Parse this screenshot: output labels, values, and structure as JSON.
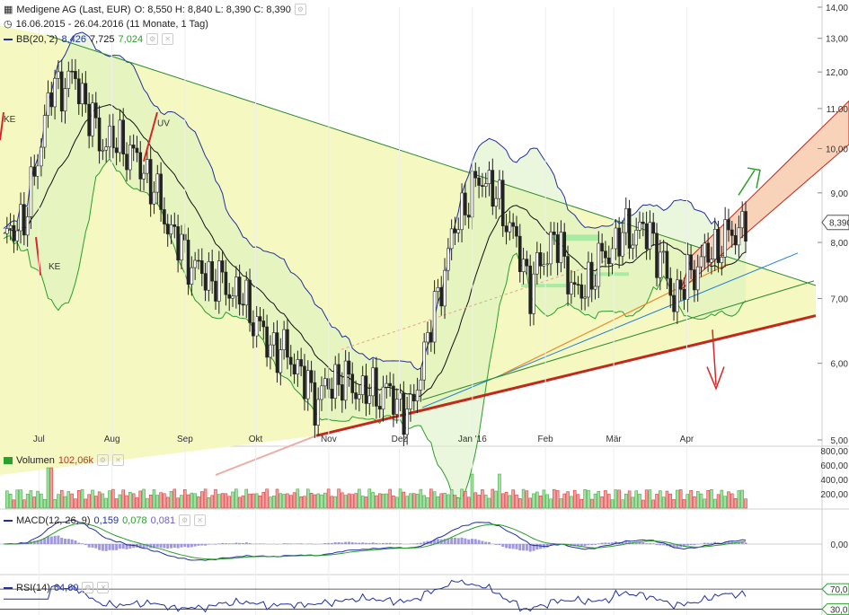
{
  "header": {
    "instrument": "Medigene AG (Last, EUR)",
    "ohlc": "O: 8,550  H: 8,840  L: 8,390  C: 8,390",
    "range": "16.06.2015 - 26.04.2016 (11 Monate, 1 Tag)",
    "bb_label": "BB(20, 2)",
    "bb_values": [
      "8,426",
      "7,725",
      "7,024"
    ]
  },
  "panels": {
    "volume": {
      "label": "Volumen",
      "value": "102,06k"
    },
    "macd": {
      "label": "MACD(12, 26, 9)",
      "values": [
        "0,159",
        "0,078",
        "0,081"
      ]
    },
    "rsi": {
      "label": "RSI(14)",
      "value": "64,60"
    }
  },
  "price_tag": "8,390",
  "annotations": {
    "ke_left": "KE",
    "ke_bottom": "KE",
    "uv": "UV"
  },
  "colors": {
    "up": "#2ca02c",
    "down": "#d62728",
    "bb_upper": "#1f2f9f",
    "bb_mid": "#111111",
    "bb_lower": "#2a9d2a",
    "triangle_fill": "#f5f8c0",
    "support": "#c0291c",
    "channel_fill": "#f9d3b9",
    "macd": "#1f2f9f",
    "signal": "#2a9d2a",
    "hist": "#8a7fd8"
  },
  "chart_data": {
    "type": "candlestick",
    "title": "Medigene AG (Last, EUR)",
    "x_tick_labels": [
      "Jul",
      "Aug",
      "Sep",
      "Okt",
      "Nov",
      "Dez",
      "Jan '16",
      "Feb",
      "Mär",
      "Apr"
    ],
    "y_tick_labels": [
      "5,00",
      "6,00",
      "7,00",
      "8,00",
      "9,00",
      "10,00",
      "11,00",
      "12,00",
      "13,00",
      "14,00"
    ],
    "y_range": [
      5,
      14
    ],
    "y_scale": "log",
    "volume_ticks": [
      "200,00",
      "400,00",
      "600,00",
      "800,00"
    ],
    "macd_ticks": [
      "0,00"
    ],
    "rsi_ticks": [
      "70,0",
      "30,0"
    ],
    "close_series": [
      {
        "date": "2015-06-16",
        "close": 8.0
      },
      {
        "date": "2015-06-26",
        "close": 8.6
      },
      {
        "date": "2015-07-06",
        "close": 11.5
      },
      {
        "date": "2015-07-16",
        "close": 11.8
      },
      {
        "date": "2015-07-26",
        "close": 10.2
      },
      {
        "date": "2015-08-05",
        "close": 10.1
      },
      {
        "date": "2015-08-15",
        "close": 9.4
      },
      {
        "date": "2015-08-25",
        "close": 8.2
      },
      {
        "date": "2015-09-05",
        "close": 7.5
      },
      {
        "date": "2015-09-15",
        "close": 7.3
      },
      {
        "date": "2015-09-25",
        "close": 7.0
      },
      {
        "date": "2015-10-05",
        "close": 6.3
      },
      {
        "date": "2015-10-15",
        "close": 6.1
      },
      {
        "date": "2015-10-25",
        "close": 5.5
      },
      {
        "date": "2015-11-05",
        "close": 5.8
      },
      {
        "date": "2015-11-15",
        "close": 5.6
      },
      {
        "date": "2015-11-25",
        "close": 5.6
      },
      {
        "date": "2015-12-05",
        "close": 5.3
      },
      {
        "date": "2015-12-15",
        "close": 6.8
      },
      {
        "date": "2015-12-25",
        "close": 8.5
      },
      {
        "date": "2016-01-05",
        "close": 9.4
      },
      {
        "date": "2016-01-15",
        "close": 8.5
      },
      {
        "date": "2016-01-25",
        "close": 7.2
      },
      {
        "date": "2016-02-05",
        "close": 8.1
      },
      {
        "date": "2016-02-15",
        "close": 7.0
      },
      {
        "date": "2016-02-25",
        "close": 7.7
      },
      {
        "date": "2016-03-05",
        "close": 8.2
      },
      {
        "date": "2016-03-15",
        "close": 8.2
      },
      {
        "date": "2016-03-25",
        "close": 7.0
      },
      {
        "date": "2016-04-05",
        "close": 7.6
      },
      {
        "date": "2016-04-15",
        "close": 8.0
      },
      {
        "date": "2016-04-26",
        "close": 8.39
      }
    ]
  }
}
